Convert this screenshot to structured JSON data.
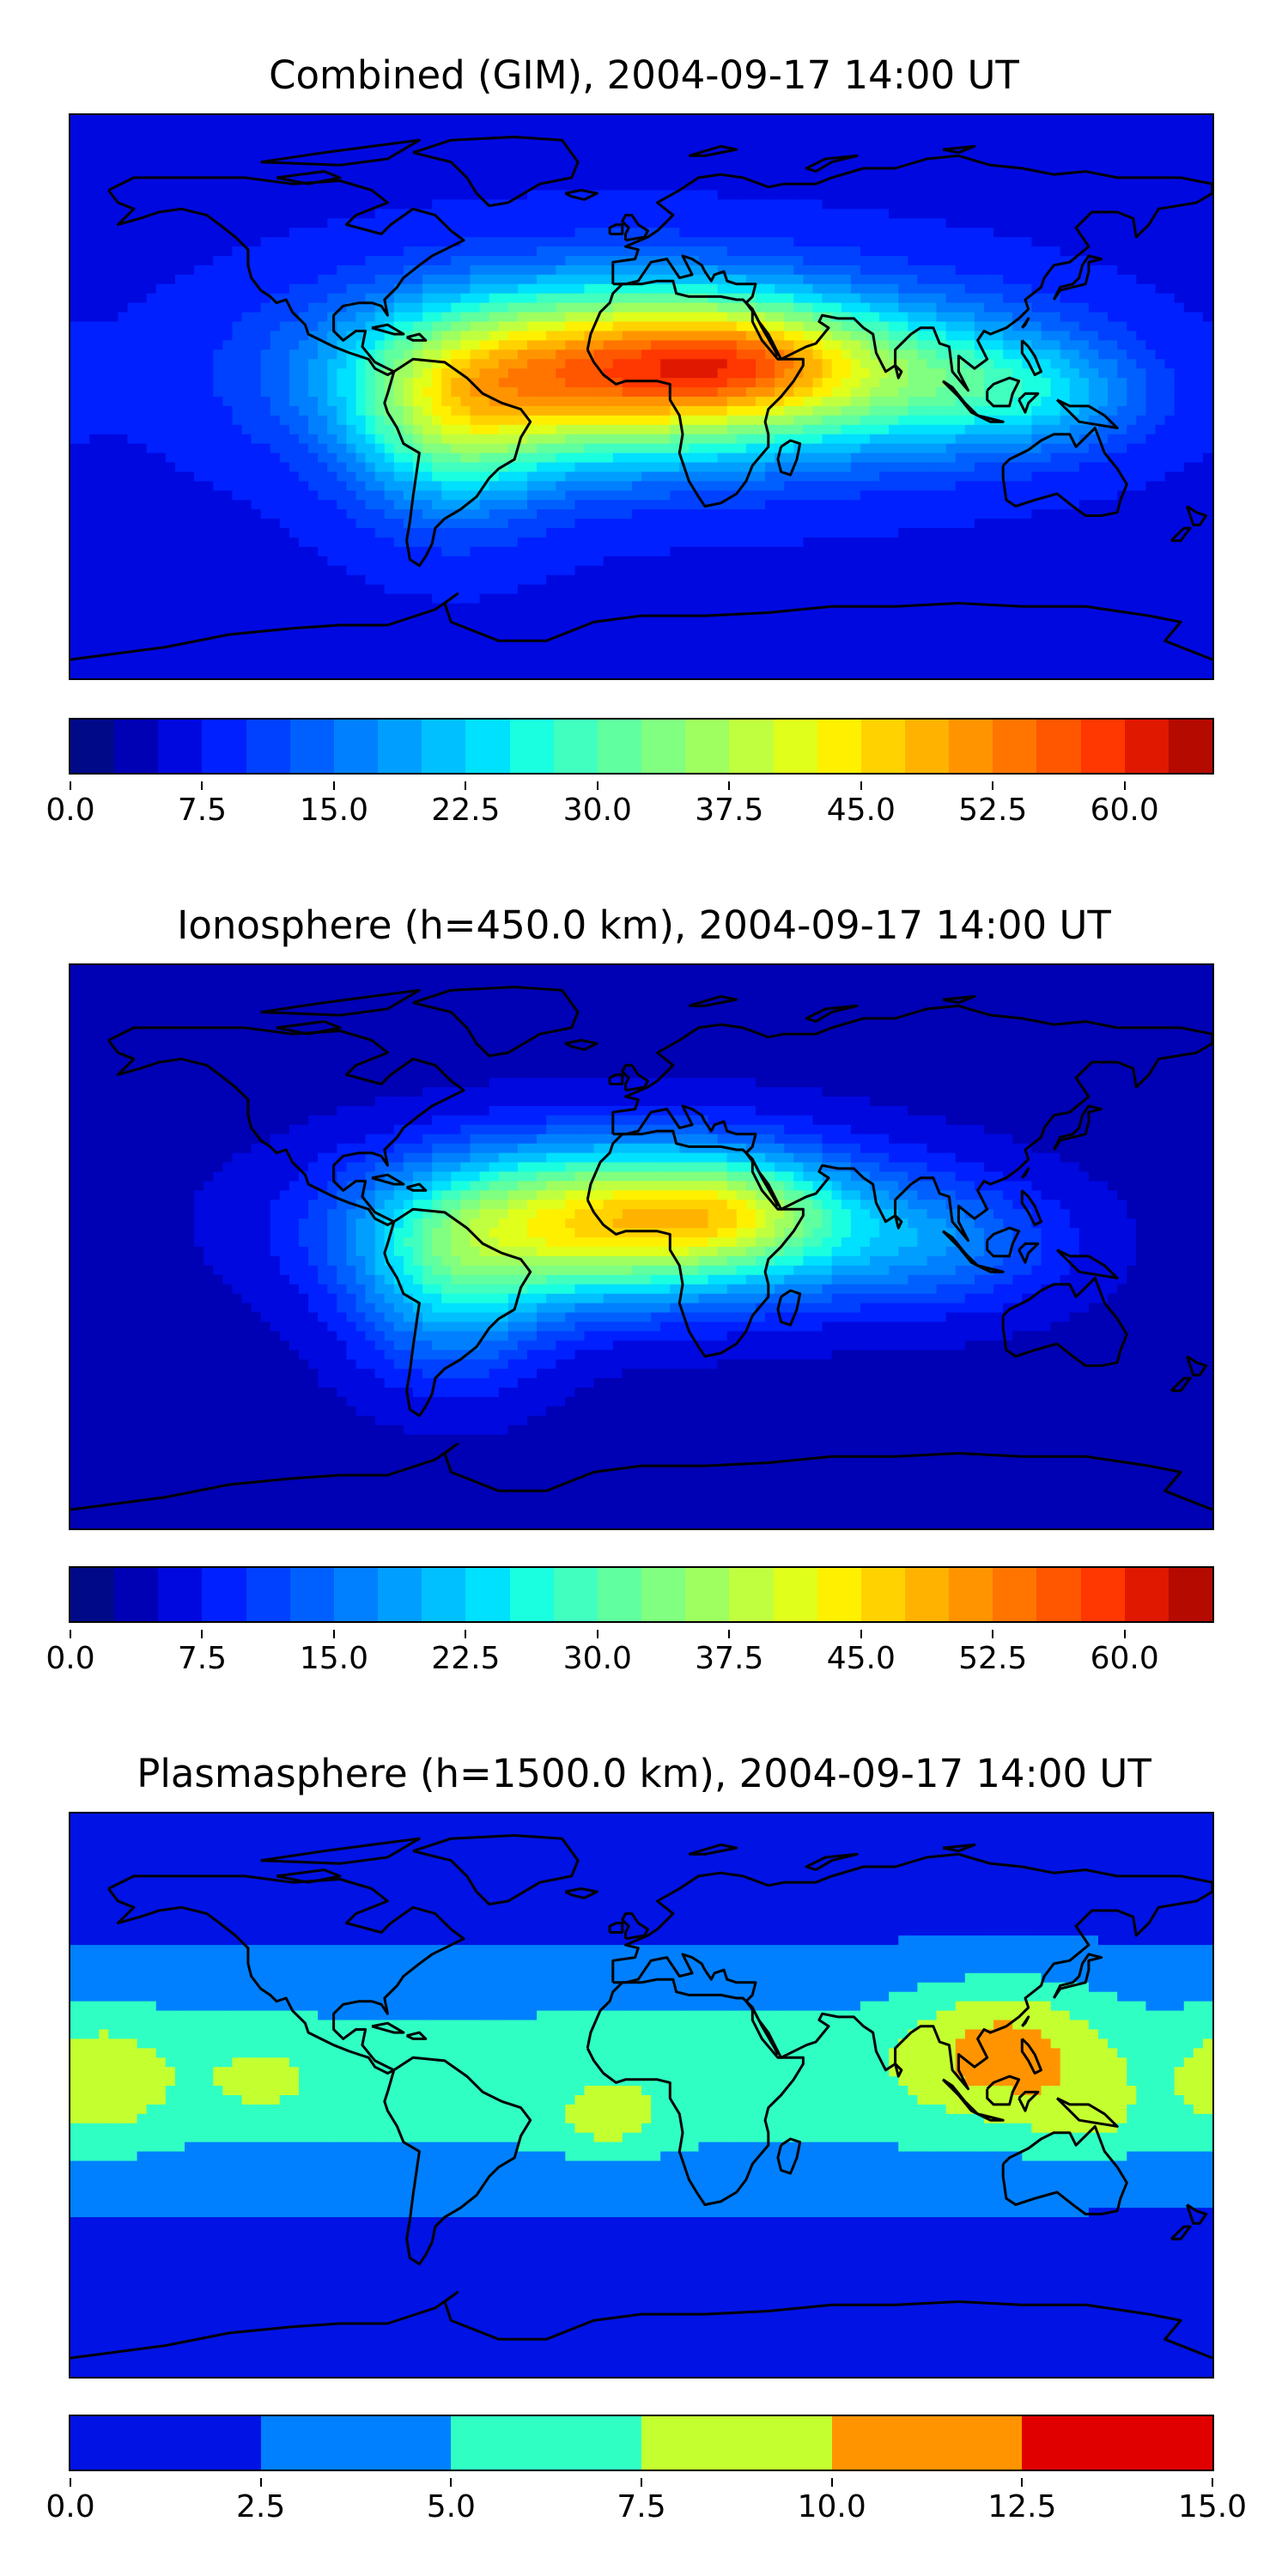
{
  "chart_data": [
    {
      "type": "heatmap",
      "title": "Combined (GIM), 2004-09-17 14:00 UT",
      "colorbar": {
        "min": 0.0,
        "max": 65.0,
        "step": 2.5,
        "tick_labels": [
          "0.0",
          "7.5",
          "15.0",
          "22.5",
          "30.0",
          "37.5",
          "45.0",
          "52.5",
          "60.0"
        ],
        "tick_values": [
          0.0,
          7.5,
          15.0,
          22.5,
          30.0,
          37.5,
          45.0,
          52.5,
          60.0
        ],
        "colors": [
          "#000a88",
          "#0000b4",
          "#0008e0",
          "#0020ff",
          "#0040ff",
          "#0060ff",
          "#0080ff",
          "#009fff",
          "#00c0ff",
          "#00e0ff",
          "#1affe0",
          "#40ffbf",
          "#60ff9f",
          "#80ff80",
          "#9fff60",
          "#c0ff40",
          "#e0ff1a",
          "#fff000",
          "#ffd200",
          "#ffb300",
          "#ff9400",
          "#ff7500",
          "#ff5600",
          "#ff3700",
          "#e01800",
          "#b40a00"
        ]
      },
      "field": {
        "background": 7.0,
        "features": [
          {
            "lon": -5,
            "lat": 8,
            "amp": 48,
            "sx": 55,
            "sy": 19
          },
          {
            "lon": 35,
            "lat": 12,
            "amp": 12,
            "sx": 25,
            "sy": 12
          },
          {
            "lon": -60,
            "lat": -12,
            "amp": 16,
            "sx": 22,
            "sy": 20
          },
          {
            "lon": 95,
            "lat": 5,
            "amp": 14,
            "sx": 32,
            "sy": 16
          },
          {
            "lon": 130,
            "lat": 0,
            "amp": 8,
            "sx": 22,
            "sy": 12
          }
        ]
      }
    },
    {
      "type": "heatmap",
      "title": "Ionosphere  (h=450.0 km), 2004-09-17 14:00 UT",
      "colorbar": {
        "min": 0.0,
        "max": 65.0,
        "step": 2.5,
        "tick_labels": [
          "0.0",
          "7.5",
          "15.0",
          "22.5",
          "30.0",
          "37.5",
          "45.0",
          "52.5",
          "60.0"
        ],
        "tick_values": [
          0.0,
          7.5,
          15.0,
          22.5,
          30.0,
          37.5,
          45.0,
          52.5,
          60.0
        ],
        "colors": [
          "#000a88",
          "#0000b4",
          "#0008e0",
          "#0020ff",
          "#0040ff",
          "#0060ff",
          "#0080ff",
          "#009fff",
          "#00c0ff",
          "#00e0ff",
          "#1affe0",
          "#40ffbf",
          "#60ff9f",
          "#80ff80",
          "#9fff60",
          "#c0ff40",
          "#e0ff1a",
          "#fff000",
          "#ffd200",
          "#ffb300",
          "#ff9400",
          "#ff7500",
          "#ff5600",
          "#ff3700",
          "#e01800",
          "#b40a00"
        ]
      },
      "field": {
        "background": 4.0,
        "features": [
          {
            "lon": -5,
            "lat": 8,
            "amp": 42,
            "sx": 50,
            "sy": 17
          },
          {
            "lon": 30,
            "lat": 12,
            "amp": 8,
            "sx": 20,
            "sy": 10
          },
          {
            "lon": -60,
            "lat": -15,
            "amp": 14,
            "sx": 22,
            "sy": 20
          },
          {
            "lon": 95,
            "lat": 0,
            "amp": 9,
            "sx": 28,
            "sy": 14
          }
        ]
      }
    },
    {
      "type": "heatmap",
      "title": "Plasmasphere (h=1500.0 km), 2004-09-17 14:00 UT",
      "colorbar": {
        "min": 0.0,
        "max": 15.0,
        "step": 2.5,
        "tick_labels": [
          "0.0",
          "2.5",
          "5.0",
          "7.5",
          "10.0",
          "12.5",
          "15.0"
        ],
        "tick_values": [
          0.0,
          2.5,
          5.0,
          7.5,
          10.0,
          12.5,
          15.0
        ],
        "colors": [
          "#0012e4",
          "#0080ff",
          "#30ffc4",
          "#c4ff30",
          "#ff9400",
          "#e00000"
        ]
      },
      "field": {
        "background": 1.2,
        "features": [
          {
            "lon": 0,
            "lat": 5,
            "amp": 5.2,
            "sx": 420,
            "sy": 26
          },
          {
            "lon": 115,
            "lat": 15,
            "amp": 5.5,
            "sx": 22,
            "sy": 15
          },
          {
            "lon": 140,
            "lat": -8,
            "amp": 2.5,
            "sx": 12,
            "sy": 8
          },
          {
            "lon": -170,
            "lat": 5,
            "amp": 3.5,
            "sx": 15,
            "sy": 15
          },
          {
            "lon": -10,
            "lat": -8,
            "amp": 3.0,
            "sx": 12,
            "sy": 8
          },
          {
            "lon": -120,
            "lat": 5,
            "amp": 2.0,
            "sx": 14,
            "sy": 10
          }
        ]
      }
    }
  ]
}
